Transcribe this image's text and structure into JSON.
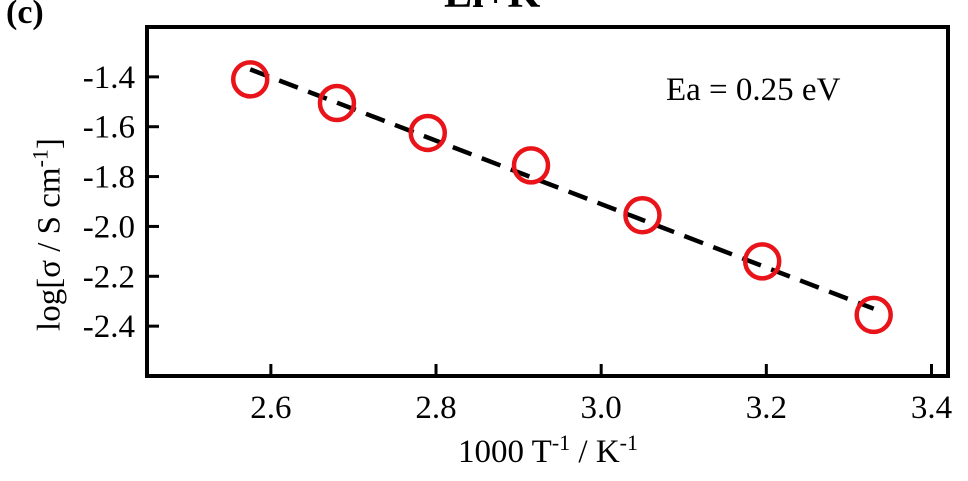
{
  "panel_label": "(c)",
  "title_fragment": "Li+K",
  "annotation": "Ea = 0.25 eV",
  "chart_data": {
    "type": "scatter",
    "title": "",
    "xlabel": {
      "prefix": "1000 T",
      "exp1": "-1",
      "middle": " / K",
      "exp2": "-1"
    },
    "ylabel": {
      "prefix": "log[σ / S cm",
      "exp": "-1",
      "suffix": "]"
    },
    "xlim": [
      2.45,
      3.42
    ],
    "ylim": [
      -2.6,
      -1.2
    ],
    "x_ticks": [
      2.6,
      2.8,
      3.0,
      3.2,
      3.4
    ],
    "x_tick_labels": [
      "2.6",
      "2.8",
      "3.0",
      "3.2",
      "3.4"
    ],
    "y_ticks": [
      -1.4,
      -1.6,
      -1.8,
      -2.0,
      -2.2,
      -2.4
    ],
    "y_tick_labels": [
      "-1.4",
      "-1.6",
      "-1.8",
      "-2.0",
      "-2.2",
      "-2.4"
    ],
    "points": {
      "x": [
        2.575,
        2.68,
        2.79,
        2.915,
        3.05,
        3.195,
        3.33
      ],
      "y": [
        -1.41,
        -1.505,
        -1.625,
        -1.755,
        -1.955,
        -2.14,
        -2.355
      ],
      "marker": "open-circle",
      "color": "#e8141a"
    },
    "fit_line": {
      "x": [
        2.575,
        3.33
      ],
      "y": [
        -1.37,
        -2.33
      ],
      "style": "dashed",
      "color": "#000000"
    },
    "grid": false
  }
}
